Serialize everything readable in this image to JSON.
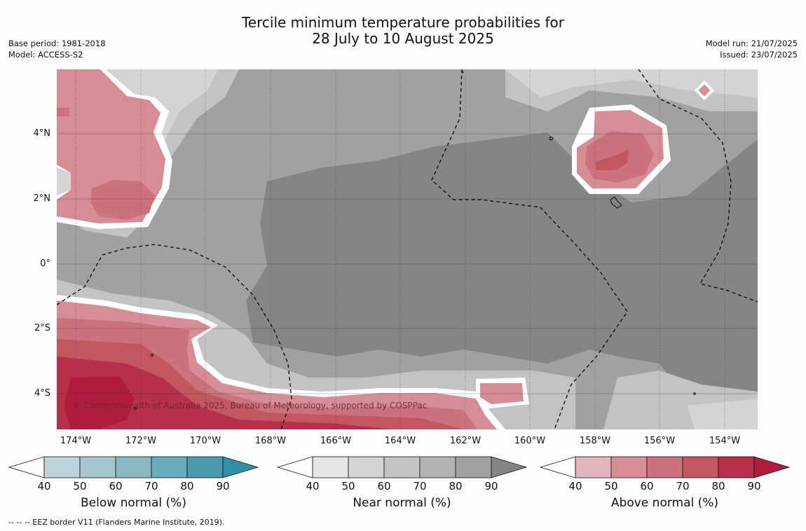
{
  "title": {
    "line1": "Tercile minimum temperature probabilities for",
    "line2": "28 July to 10 August 2025"
  },
  "meta_left": {
    "base_period": "Base period: 1981-2018",
    "model": "Model: ACCESS-S2"
  },
  "meta_right": {
    "model_run": "Model run: 21/07/2025",
    "issued": "Issued: 23/07/2025"
  },
  "map": {
    "lon_ticks": [
      "174°W",
      "172°W",
      "170°W",
      "168°W",
      "166°W",
      "164°W",
      "162°W",
      "160°W",
      "158°W",
      "156°W",
      "154°W"
    ],
    "lat_ticks": [
      "4°N",
      "2°N",
      "0°",
      "2°S",
      "4°S"
    ],
    "copyright": "© Commonwealth of Australia 2025, Bureau of Meteorology, supported by COSPPac"
  },
  "colorbars": [
    {
      "title": "Below normal (%)",
      "labels": [
        "40",
        "50",
        "60",
        "70",
        "80",
        "90"
      ],
      "colors": [
        "#ffffff",
        "#bcd3da",
        "#a6c6cc",
        "#89b7c2",
        "#6aabb8",
        "#4a9cad",
        "#3190a6"
      ]
    },
    {
      "title": "Near normal (%)",
      "labels": [
        "40",
        "50",
        "60",
        "70",
        "80",
        "90"
      ],
      "colors": [
        "#ffffff",
        "#e6e6e6",
        "#d4d4d4",
        "#c3c3c3",
        "#b2b2b2",
        "#a1a1a1",
        "#858585"
      ]
    },
    {
      "title": "Above normal (%)",
      "labels": [
        "40",
        "50",
        "60",
        "70",
        "80",
        "90"
      ],
      "colors": [
        "#ffffff",
        "#e2b6bc",
        "#d58d96",
        "#cc727c",
        "#c2585f",
        "#b7304a",
        "#b01d3c"
      ]
    }
  ],
  "footnote": "--  --  -- EEZ border V11 (Flanders Marine Institute, 2019)."
}
